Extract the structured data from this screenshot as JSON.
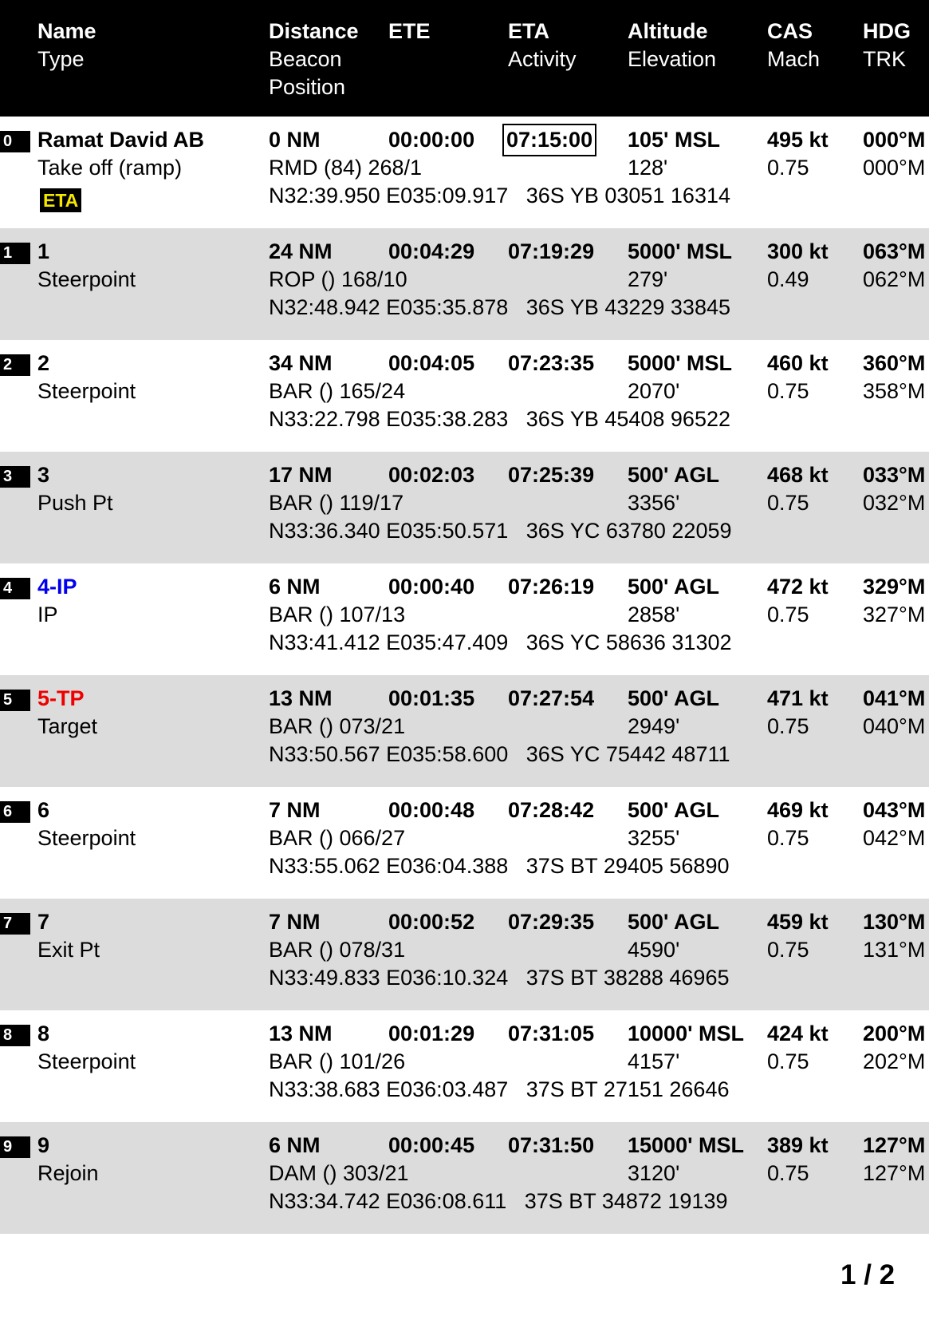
{
  "header": {
    "name": "Name",
    "type": "Type",
    "distance": "Distance",
    "beacon": "Beacon",
    "position": "Position",
    "ete": "ETE",
    "eta": "ETA",
    "activity": "Activity",
    "altitude": "Altitude",
    "elevation": "Elevation",
    "cas": "CAS",
    "mach": "Mach",
    "hdg": "HDG",
    "trk": "TRK"
  },
  "rows": [
    {
      "idx": "0",
      "name": "Ramat David AB",
      "type": "Take off (ramp)",
      "badge": "ETA",
      "distance": "0 NM",
      "ete": "00:00:00",
      "eta": "07:15:00",
      "eta_boxed": true,
      "altitude": "105' MSL",
      "cas": "495 kt",
      "hdg": "000°M",
      "beacon": "RMD (84) 268/1",
      "elevation": "128'",
      "mach": "0.75",
      "trk": "000°M",
      "position": "N32:39.950 E035:09.917   36S YB 03051 16314",
      "name_color": "#000000"
    },
    {
      "idx": "1",
      "name": "1",
      "type": "Steerpoint",
      "distance": "24 NM",
      "ete": "00:04:29",
      "eta": "07:19:29",
      "altitude": "5000' MSL",
      "cas": "300 kt",
      "hdg": "063°M",
      "beacon": "ROP () 168/10",
      "elevation": "279'",
      "mach": "0.49",
      "trk": "062°M",
      "position": "N32:48.942 E035:35.878   36S YB 43229 33845",
      "name_color": "#000000"
    },
    {
      "idx": "2",
      "name": "2",
      "type": "Steerpoint",
      "distance": "34 NM",
      "ete": "00:04:05",
      "eta": "07:23:35",
      "altitude": "5000' MSL",
      "cas": "460 kt",
      "hdg": "360°M",
      "beacon": "BAR () 165/24",
      "elevation": "2070'",
      "mach": "0.75",
      "trk": "358°M",
      "position": "N33:22.798 E035:38.283   36S YB 45408 96522",
      "name_color": "#000000"
    },
    {
      "idx": "3",
      "name": "3",
      "type": "Push Pt",
      "distance": "17 NM",
      "ete": "00:02:03",
      "eta": "07:25:39",
      "altitude": "500' AGL",
      "cas": "468 kt",
      "hdg": "033°M",
      "beacon": "BAR () 119/17",
      "elevation": "3356'",
      "mach": "0.75",
      "trk": "032°M",
      "position": "N33:36.340 E035:50.571   36S YC 63780 22059",
      "name_color": "#000000"
    },
    {
      "idx": "4",
      "name": "4-IP",
      "type": "IP",
      "distance": "6 NM",
      "ete": "00:00:40",
      "eta": "07:26:19",
      "altitude": "500' AGL",
      "cas": "472 kt",
      "hdg": "329°M",
      "beacon": "BAR () 107/13",
      "elevation": "2858'",
      "mach": "0.75",
      "trk": "327°M",
      "position": "N33:41.412 E035:47.409   36S YC 58636 31302",
      "name_color": "#0000ee"
    },
    {
      "idx": "5",
      "name": "5-TP",
      "type": "Target",
      "distance": "13 NM",
      "ete": "00:01:35",
      "eta": "07:27:54",
      "altitude": "500' AGL",
      "cas": "471 kt",
      "hdg": "041°M",
      "beacon": "BAR () 073/21",
      "elevation": "2949'",
      "mach": "0.75",
      "trk": "040°M",
      "position": "N33:50.567 E035:58.600   36S YC 75442 48711",
      "name_color": "#ee0000"
    },
    {
      "idx": "6",
      "name": "6",
      "type": "Steerpoint",
      "distance": "7 NM",
      "ete": "00:00:48",
      "eta": "07:28:42",
      "altitude": "500' AGL",
      "cas": "469 kt",
      "hdg": "043°M",
      "beacon": "BAR () 066/27",
      "elevation": "3255'",
      "mach": "0.75",
      "trk": "042°M",
      "position": "N33:55.062 E036:04.388   37S BT 29405 56890",
      "name_color": "#000000"
    },
    {
      "idx": "7",
      "name": "7",
      "type": "Exit Pt",
      "distance": "7 NM",
      "ete": "00:00:52",
      "eta": "07:29:35",
      "altitude": "500' AGL",
      "cas": "459 kt",
      "hdg": "130°M",
      "beacon": "BAR () 078/31",
      "elevation": "4590'",
      "mach": "0.75",
      "trk": "131°M",
      "position": "N33:49.833 E036:10.324   37S BT 38288 46965",
      "name_color": "#000000"
    },
    {
      "idx": "8",
      "name": "8",
      "type": "Steerpoint",
      "distance": "13 NM",
      "ete": "00:01:29",
      "eta": "07:31:05",
      "altitude": "10000' MSL",
      "cas": "424 kt",
      "hdg": "200°M",
      "beacon": "BAR () 101/26",
      "elevation": "4157'",
      "mach": "0.75",
      "trk": "202°M",
      "position": "N33:38.683 E036:03.487   37S BT 27151 26646",
      "name_color": "#000000"
    },
    {
      "idx": "9",
      "name": "9",
      "type": "Rejoin",
      "distance": "6 NM",
      "ete": "00:00:45",
      "eta": "07:31:50",
      "altitude": "15000' MSL",
      "cas": "389 kt",
      "hdg": "127°M",
      "beacon": "DAM () 303/21",
      "elevation": "3120'",
      "mach": "0.75",
      "trk": "127°M",
      "position": "N33:34.742 E036:08.611   37S BT 34872 19139",
      "name_color": "#000000"
    }
  ],
  "page_number": "1 / 2"
}
